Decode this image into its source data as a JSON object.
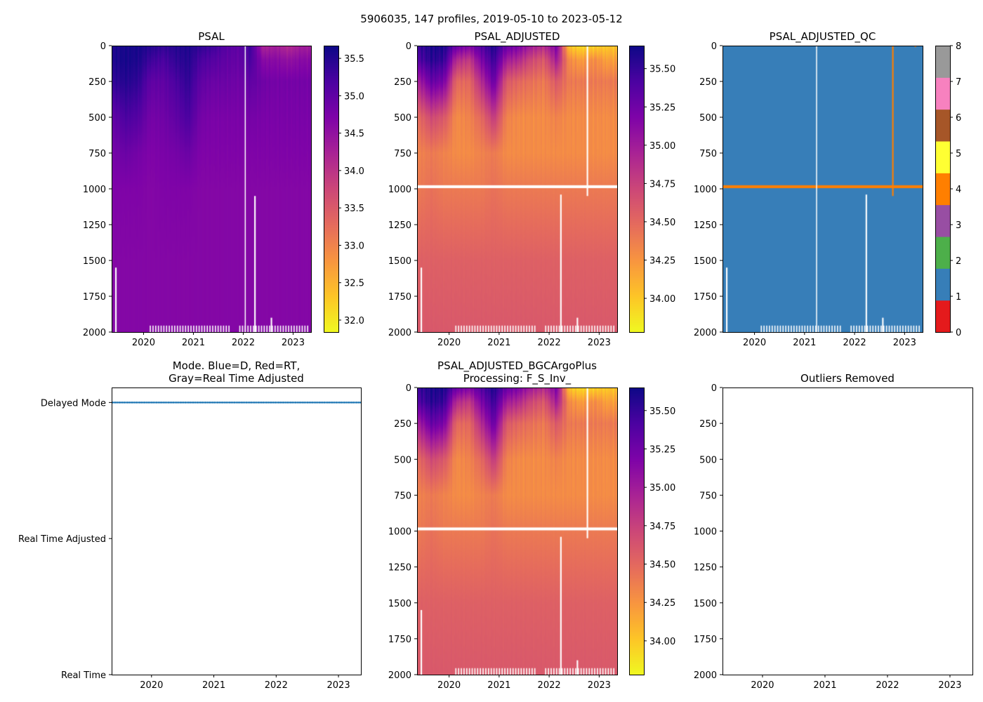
{
  "figure": {
    "title": "5906035, 147 profiles, 2019-05-10 to 2023-05-12"
  },
  "chart_data": [
    {
      "id": "psal",
      "type": "heatmap",
      "title": [
        "PSAL"
      ],
      "xlim": [
        2019.36,
        2023.36
      ],
      "ylim": [
        2000,
        0
      ],
      "xticks": [
        2020,
        2021,
        2022,
        2023
      ],
      "xtick_labels": [
        "2020",
        "2021",
        "2022",
        "2023"
      ],
      "yticks": [
        0,
        250,
        500,
        750,
        1000,
        1250,
        1500,
        1750,
        2000
      ],
      "ytick_labels": [
        "0",
        "250",
        "500",
        "750",
        "1000",
        "1250",
        "1500",
        "1750",
        "2000"
      ],
      "profiles": 147,
      "colorbar": {
        "cmap": "plasma_r",
        "range": [
          31.84,
          35.67
        ],
        "ticks": [
          32.0,
          32.5,
          33.0,
          33.5,
          34.0,
          34.5,
          35.0,
          35.5
        ],
        "tick_labels": [
          "32.0",
          "32.5",
          "33.0",
          "33.5",
          "34.0",
          "34.5",
          "35.0",
          "35.5"
        ]
      },
      "grid": {
        "times": [
          2019.4,
          2019.65,
          2019.9,
          2020.15,
          2020.4,
          2020.65,
          2020.9,
          2021.15,
          2021.4,
          2021.65,
          2021.9,
          2022.15,
          2022.4,
          2022.65,
          2022.9,
          2023.15
        ],
        "depths": [
          0,
          100,
          250,
          500,
          750,
          1000,
          1500,
          2000
        ],
        "values": [
          [
            35.55,
            35.55,
            35.4,
            35.0,
            34.8,
            34.7,
            34.65,
            34.65
          ],
          [
            35.6,
            35.6,
            35.5,
            35.2,
            34.9,
            34.7,
            34.65,
            34.65
          ],
          [
            35.6,
            35.55,
            35.4,
            35.1,
            34.8,
            34.7,
            34.65,
            34.65
          ],
          [
            35.5,
            35.3,
            35.0,
            34.8,
            34.7,
            34.65,
            34.65,
            34.65
          ],
          [
            35.4,
            35.2,
            35.0,
            34.85,
            34.75,
            34.7,
            34.65,
            34.65
          ],
          [
            35.5,
            35.4,
            35.2,
            35.0,
            34.8,
            34.7,
            34.65,
            34.65
          ],
          [
            35.55,
            35.5,
            35.4,
            35.2,
            34.9,
            34.7,
            34.65,
            34.65
          ],
          [
            35.4,
            35.2,
            35.0,
            34.8,
            34.7,
            34.65,
            34.65,
            34.65
          ],
          [
            35.3,
            35.1,
            34.9,
            34.75,
            34.7,
            34.65,
            34.65,
            34.65
          ],
          [
            35.1,
            35.0,
            34.9,
            34.75,
            34.7,
            34.65,
            34.65,
            34.65
          ],
          [
            35.0,
            34.95,
            34.85,
            34.75,
            34.7,
            34.65,
            34.65,
            34.65
          ],
          [
            35.3,
            35.2,
            35.0,
            34.8,
            34.7,
            34.65,
            34.65,
            34.65
          ],
          [
            34.2,
            34.6,
            34.85,
            34.75,
            34.7,
            34.65,
            34.65,
            34.65
          ],
          [
            34.3,
            34.6,
            34.8,
            34.75,
            34.7,
            34.65,
            34.65,
            34.65
          ],
          [
            34.1,
            34.5,
            34.8,
            34.75,
            34.7,
            34.65,
            34.65,
            34.65
          ],
          [
            34.3,
            34.6,
            34.8,
            34.75,
            34.7,
            34.65,
            34.65,
            34.65
          ]
        ]
      },
      "missing": [
        {
          "t": [
            2022.03,
            2022.05
          ],
          "z": [
            0,
            2000
          ]
        },
        {
          "t": [
            2022.22,
            2022.25
          ],
          "z": [
            1050,
            2000
          ]
        },
        {
          "t": [
            2019.43,
            2019.46
          ],
          "z": [
            1550,
            2000
          ]
        },
        {
          "t": [
            2022.55,
            2022.58
          ],
          "z": [
            1900,
            2000
          ]
        }
      ],
      "bottom_gaps": {
        "from": 2020.1,
        "to": 2023.33,
        "z": [
          1955,
          2000
        ]
      }
    },
    {
      "id": "psal_adjusted",
      "type": "heatmap",
      "title": [
        "PSAL_ADJUSTED"
      ],
      "xlim": [
        2019.36,
        2023.36
      ],
      "ylim": [
        2000,
        0
      ],
      "xticks": [
        2020,
        2021,
        2022,
        2023
      ],
      "xtick_labels": [
        "2020",
        "2021",
        "2022",
        "2023"
      ],
      "yticks": [
        0,
        250,
        500,
        750,
        1000,
        1250,
        1500,
        1750,
        2000
      ],
      "ytick_labels": [
        "0",
        "250",
        "500",
        "750",
        "1000",
        "1250",
        "1500",
        "1750",
        "2000"
      ],
      "profiles": 147,
      "colorbar": {
        "cmap": "plasma_r",
        "range": [
          33.78,
          35.65
        ],
        "ticks": [
          34.0,
          34.25,
          34.5,
          34.75,
          35.0,
          35.25,
          35.5
        ],
        "tick_labels": [
          "34.00",
          "34.25",
          "34.50",
          "34.75",
          "35.00",
          "35.25",
          "35.50"
        ]
      },
      "grid": {
        "times": [
          2019.4,
          2019.65,
          2019.9,
          2020.15,
          2020.4,
          2020.65,
          2020.9,
          2021.15,
          2021.4,
          2021.65,
          2021.9,
          2022.15,
          2022.4,
          2022.65,
          2022.9,
          2023.15
        ],
        "depths": [
          0,
          100,
          250,
          500,
          750,
          1000,
          1500,
          2000
        ],
        "values": [
          [
            35.5,
            35.4,
            35.0,
            34.5,
            34.35,
            34.4,
            34.55,
            34.6
          ],
          [
            35.6,
            35.55,
            35.3,
            34.7,
            34.4,
            34.45,
            34.55,
            34.6
          ],
          [
            35.6,
            35.5,
            35.2,
            34.6,
            34.35,
            34.4,
            34.55,
            34.6
          ],
          [
            35.3,
            34.9,
            34.5,
            34.3,
            34.3,
            34.4,
            34.55,
            34.6
          ],
          [
            35.2,
            34.8,
            34.5,
            34.35,
            34.3,
            34.4,
            34.55,
            34.6
          ],
          [
            35.4,
            35.2,
            34.9,
            34.5,
            34.35,
            34.4,
            34.55,
            34.6
          ],
          [
            35.6,
            35.5,
            35.3,
            34.8,
            34.4,
            34.45,
            34.55,
            34.6
          ],
          [
            35.3,
            35.0,
            34.6,
            34.35,
            34.3,
            34.4,
            34.55,
            34.6
          ],
          [
            35.2,
            34.9,
            34.5,
            34.3,
            34.3,
            34.4,
            34.55,
            34.6
          ],
          [
            35.0,
            34.7,
            34.45,
            34.3,
            34.3,
            34.4,
            34.55,
            34.6
          ],
          [
            34.9,
            34.6,
            34.4,
            34.3,
            34.3,
            34.4,
            34.55,
            34.6
          ],
          [
            35.2,
            35.0,
            34.6,
            34.35,
            34.3,
            34.4,
            34.55,
            34.6
          ],
          [
            34.0,
            34.3,
            34.4,
            34.3,
            34.3,
            34.4,
            34.55,
            34.6
          ],
          [
            33.9,
            34.2,
            34.4,
            34.3,
            34.3,
            34.4,
            34.55,
            34.6
          ],
          [
            33.95,
            34.3,
            34.4,
            34.3,
            34.3,
            34.4,
            34.55,
            34.6
          ],
          [
            34.0,
            34.2,
            34.4,
            34.3,
            34.3,
            34.4,
            34.55,
            34.6
          ]
        ]
      },
      "missing": [
        {
          "t": [
            2019.36,
            2023.36
          ],
          "z": [
            975,
            995
          ]
        },
        {
          "t": [
            2022.75,
            2022.78
          ],
          "z": [
            0,
            1050
          ]
        },
        {
          "t": [
            2022.22,
            2022.25
          ],
          "z": [
            1040,
            2000
          ]
        },
        {
          "t": [
            2019.43,
            2019.46
          ],
          "z": [
            1550,
            2000
          ]
        },
        {
          "t": [
            2022.55,
            2022.58
          ],
          "z": [
            1900,
            2000
          ]
        }
      ],
      "bottom_gaps": {
        "from": 2020.1,
        "to": 2023.33,
        "z": [
          1955,
          2000
        ]
      }
    },
    {
      "id": "psal_adjusted_qc",
      "type": "heatmap",
      "title": [
        "PSAL_ADJUSTED_QC"
      ],
      "xlim": [
        2019.36,
        2023.36
      ],
      "ylim": [
        2000,
        0
      ],
      "xticks": [
        2020,
        2021,
        2022,
        2023
      ],
      "xtick_labels": [
        "2020",
        "2021",
        "2022",
        "2023"
      ],
      "yticks": [
        0,
        250,
        500,
        750,
        1000,
        1250,
        1500,
        1750,
        2000
      ],
      "ytick_labels": [
        "0",
        "250",
        "500",
        "750",
        "1000",
        "1250",
        "1500",
        "1750",
        "2000"
      ],
      "profiles": 147,
      "base_value": 1,
      "colorbar": {
        "cmap": "Set1",
        "range": [
          0,
          8
        ],
        "colors": [
          "#e41a1c",
          "#377eb8",
          "#4daf4a",
          "#984ea3",
          "#ff7f00",
          "#ffff33",
          "#a65628",
          "#f781bf",
          "#999999"
        ],
        "ticks": [
          0,
          1,
          2,
          3,
          4,
          5,
          6,
          7,
          8
        ],
        "tick_labels": [
          "0",
          "1",
          "2",
          "3",
          "4",
          "5",
          "6",
          "7",
          "8"
        ]
      },
      "flags": [
        {
          "value": 4,
          "t": [
            2019.36,
            2023.36
          ],
          "z": [
            975,
            995
          ]
        },
        {
          "value": 4,
          "t": [
            2022.75,
            2022.78
          ],
          "z": [
            0,
            1050
          ]
        },
        {
          "value": 4,
          "t": [
            2023.2,
            2023.23
          ],
          "z": [
            0,
            10
          ]
        }
      ],
      "missing": [
        {
          "t": [
            2021.23,
            2021.25
          ],
          "z": [
            0,
            2000
          ]
        },
        {
          "t": [
            2022.22,
            2022.25
          ],
          "z": [
            1040,
            2000
          ]
        },
        {
          "t": [
            2019.43,
            2019.46
          ],
          "z": [
            1550,
            2000
          ]
        },
        {
          "t": [
            2022.55,
            2022.58
          ],
          "z": [
            1900,
            2000
          ]
        }
      ],
      "bottom_gaps": {
        "from": 2020.1,
        "to": 2023.33,
        "z": [
          1955,
          2000
        ]
      }
    },
    {
      "id": "mode",
      "type": "scatter",
      "title": [
        "Mode. Blue=D, Red=RT,",
        "Gray=Real Time Adjusted"
      ],
      "xlim": [
        2019.36,
        2023.36
      ],
      "ylim": [
        0,
        2.11
      ],
      "xticks": [
        2020,
        2021,
        2022,
        2023
      ],
      "xtick_labels": [
        "2020",
        "2021",
        "2022",
        "2023"
      ],
      "yticks": [
        2,
        1,
        0
      ],
      "ytick_labels": [
        "Delayed Mode",
        "Real Time Adjusted",
        "Real Time"
      ],
      "points": {
        "value": 2,
        "count": 147,
        "color": "#1f77b4",
        "from": 2019.36,
        "to": 2023.36
      }
    },
    {
      "id": "psal_adjusted_bgcargoplus",
      "type": "heatmap",
      "title": [
        "PSAL_ADJUSTED_BGCArgoPlus",
        "Processing: F_S_Inv_"
      ],
      "xlim": [
        2019.36,
        2023.36
      ],
      "ylim": [
        2000,
        0
      ],
      "xticks": [
        2020,
        2021,
        2022,
        2023
      ],
      "xtick_labels": [
        "2020",
        "2021",
        "2022",
        "2023"
      ],
      "yticks": [
        0,
        250,
        500,
        750,
        1000,
        1250,
        1500,
        1750,
        2000
      ],
      "ytick_labels": [
        "0",
        "250",
        "500",
        "750",
        "1000",
        "1250",
        "1500",
        "1750",
        "2000"
      ],
      "profiles": 147,
      "grid_same_as": "psal_adjusted",
      "colorbar": {
        "cmap": "plasma_r",
        "range": [
          33.78,
          35.65
        ],
        "ticks": [
          34.0,
          34.25,
          34.5,
          34.75,
          35.0,
          35.25,
          35.5
        ],
        "tick_labels": [
          "34.00",
          "34.25",
          "34.50",
          "34.75",
          "35.00",
          "35.25",
          "35.50"
        ]
      },
      "missing": [
        {
          "t": [
            2019.36,
            2023.36
          ],
          "z": [
            975,
            995
          ]
        },
        {
          "t": [
            2022.75,
            2022.78
          ],
          "z": [
            0,
            1050
          ]
        },
        {
          "t": [
            2022.22,
            2022.25
          ],
          "z": [
            1040,
            2000
          ]
        },
        {
          "t": [
            2019.43,
            2019.46
          ],
          "z": [
            1550,
            2000
          ]
        },
        {
          "t": [
            2022.55,
            2022.58
          ],
          "z": [
            1900,
            2000
          ]
        }
      ],
      "bottom_gaps": {
        "from": 2020.1,
        "to": 2023.33,
        "z": [
          1955,
          2000
        ]
      }
    },
    {
      "id": "outliers",
      "type": "scatter",
      "title": [
        "Outliers Removed"
      ],
      "xlim": [
        2019.36,
        2023.36
      ],
      "ylim": [
        2000,
        0
      ],
      "xticks": [
        2020,
        2021,
        2022,
        2023
      ],
      "xtick_labels": [
        "2020",
        "2021",
        "2022",
        "2023"
      ],
      "yticks": [
        0,
        250,
        500,
        750,
        1000,
        1250,
        1500,
        1750,
        2000
      ],
      "ytick_labels": [
        "0",
        "250",
        "500",
        "750",
        "1000",
        "1250",
        "1500",
        "1750",
        "2000"
      ],
      "points": null
    }
  ]
}
